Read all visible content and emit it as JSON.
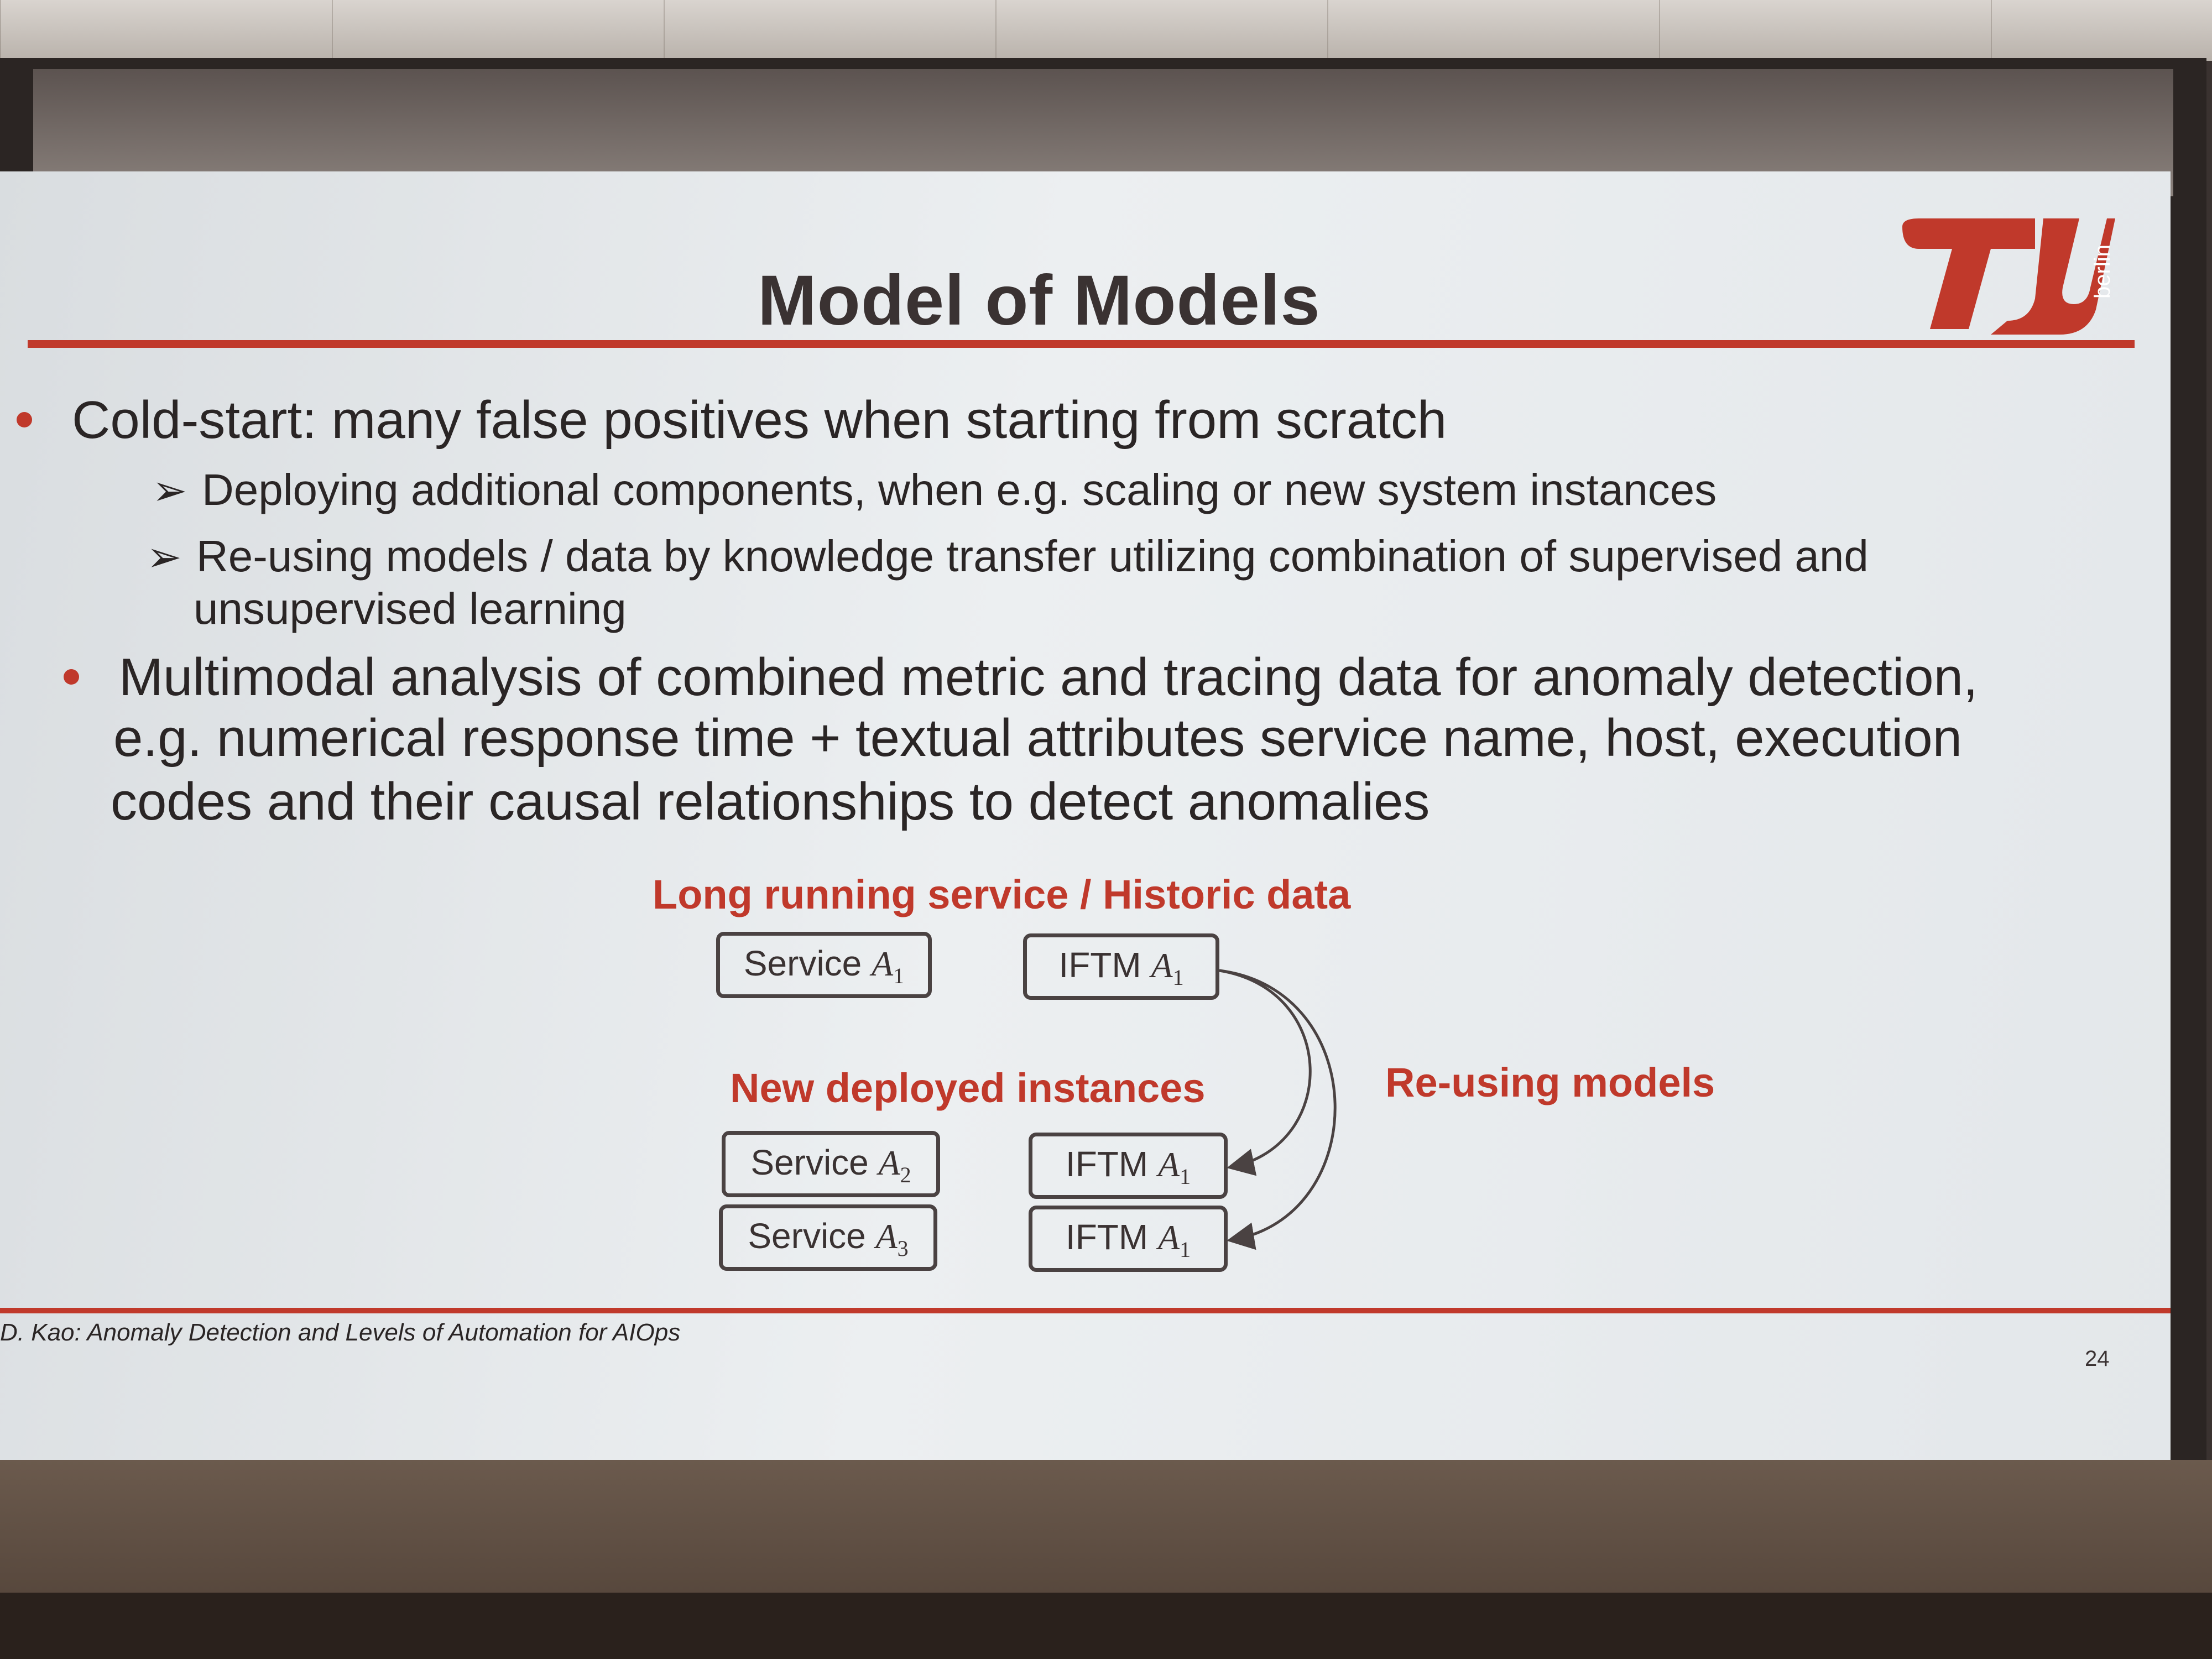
{
  "slide": {
    "title": "Model of Models",
    "logo_text": "berlin",
    "bullets": [
      {
        "text": "Cold-start: many false positives when starting from scratch",
        "subitems": [
          "Deploying additional components, when e.g. scaling or new system instances",
          "Re-using models / data by knowledge transfer utilizing  combination of supervised and",
          "unsupervised learning"
        ]
      },
      {
        "lines": [
          "Multimodal analysis of combined metric and tracing data for anomaly detection,",
          "e.g. numerical response time + textual attributes service name, host, execution",
          "codes and their causal relationships to detect anomalies"
        ]
      }
    ],
    "diagram": {
      "heading_long": "Long running service / Historic data",
      "heading_new": "New deployed instances",
      "heading_reuse": "Re-using models",
      "boxes": {
        "service_a1": {
          "label": "Service",
          "var": "A",
          "sub": "1"
        },
        "iftm_top": {
          "label": "IFTM",
          "var": "A",
          "sub": "1"
        },
        "service_a2": {
          "label": "Service",
          "var": "A",
          "sub": "2"
        },
        "iftm_mid": {
          "label": "IFTM",
          "var": "A",
          "sub": "1"
        },
        "service_a3": {
          "label": "Service",
          "var": "A",
          "sub": "3"
        },
        "iftm_bottom": {
          "label": "IFTM",
          "var": "A",
          "sub": "1"
        }
      }
    },
    "footer": "D. Kao: Anomaly Detection and Levels of Automation for AIOps",
    "page_number": "24",
    "colors": {
      "accent": "#c0392b",
      "text": "#2a2525",
      "background": "#e6e9ec"
    }
  }
}
